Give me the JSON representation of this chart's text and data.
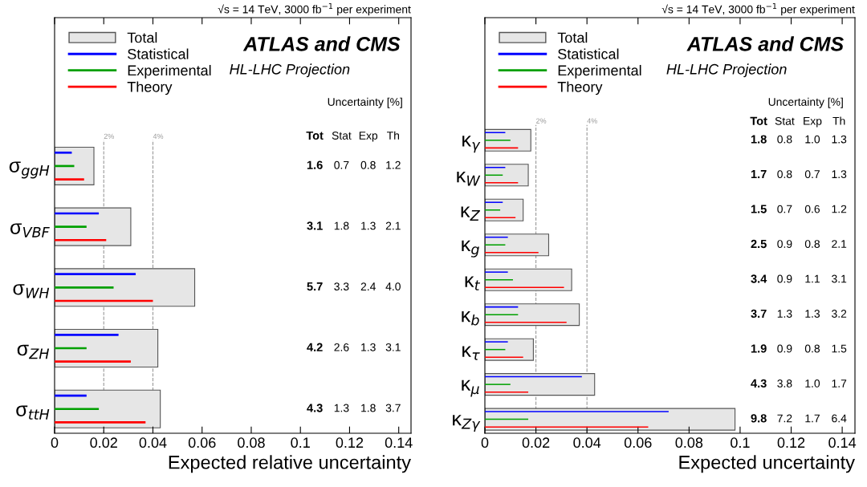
{
  "chart_data": [
    {
      "type": "bar",
      "orientation": "horizontal",
      "title": "ATLAS and CMS",
      "subtitle": "√s = 14 TeV, 3000 fb$^{−1}$ per experiment",
      "xlabel": "Expected relative uncertainty",
      "categories": [
        "σ$_{ggH}$",
        "σ$_{VBF}$",
        "σ$_{WH}$",
        "σ$_{ZH}$",
        "σ$_{ttH}$"
      ],
      "series": [
        {
          "name": "Total",
          "color": "#e6e6e6",
          "values": [
            0.016,
            0.031,
            0.057,
            0.042,
            0.043
          ]
        },
        {
          "name": "Statistical",
          "color": "#0000ff",
          "values": [
            0.007,
            0.018,
            0.033,
            0.026,
            0.013
          ]
        },
        {
          "name": "Experimental",
          "color": "#00a000",
          "values": [
            0.008,
            0.013,
            0.024,
            0.013,
            0.018
          ]
        },
        {
          "name": "Theory",
          "color": "#ff0000",
          "values": [
            0.012,
            0.021,
            0.04,
            0.031,
            0.037
          ]
        }
      ],
      "xlim": [
        0,
        0.145
      ],
      "xticks": [
        0,
        0.02,
        0.04,
        0.06,
        0.08,
        0.1,
        0.12,
        0.14
      ],
      "ref_lines": [
        {
          "axis": "x",
          "value": 0.02,
          "label": "2%",
          "color": "#999999",
          "line_style": "dashed"
        },
        {
          "axis": "x",
          "value": 0.04,
          "label": "4%",
          "color": "#999999",
          "line_style": "dashed"
        }
      ],
      "annotations": [
        "HL-LHC Projection",
        "Uncertainty [%]",
        "Tot",
        "Stat",
        "Exp",
        "Th",
        "1.6",
        "0.7",
        "0.8",
        "1.2",
        "3.1",
        "1.8",
        "1.3",
        "2.1",
        "5.7",
        "3.3",
        "2.4",
        "4.0",
        "4.2",
        "2.6",
        "1.3",
        "3.1",
        "4.3",
        "1.3",
        "1.8",
        "3.7"
      ],
      "legend": "top left",
      "grid": false
    },
    {
      "type": "bar",
      "orientation": "horizontal",
      "title": "ATLAS and CMS",
      "subtitle": "√s = 14 TeV, 3000 fb$^{−1}$ per experiment",
      "xlabel": "Expected uncertainty",
      "categories": [
        "κ$_{γ}$",
        "κ$_{W}$",
        "κ$_{Z}$",
        "κ$_{g}$",
        "κ$_{t}$",
        "κ$_{b}$",
        "κ$_{τ}$",
        "κ$_{μ}$",
        "κ$_{Zγ}$"
      ],
      "series": [
        {
          "name": "Total",
          "color": "#e6e6e6",
          "values": [
            0.018,
            0.017,
            0.015,
            0.025,
            0.034,
            0.037,
            0.019,
            0.043,
            0.098
          ]
        },
        {
          "name": "Statistical",
          "color": "#0000ff",
          "values": [
            0.008,
            0.008,
            0.007,
            0.009,
            0.009,
            0.013,
            0.009,
            0.038,
            0.072
          ]
        },
        {
          "name": "Experimental",
          "color": "#00a000",
          "values": [
            0.01,
            0.007,
            0.006,
            0.008,
            0.011,
            0.013,
            0.008,
            0.01,
            0.017
          ]
        },
        {
          "name": "Theory",
          "color": "#ff0000",
          "values": [
            0.013,
            0.013,
            0.012,
            0.021,
            0.031,
            0.032,
            0.015,
            0.017,
            0.064
          ]
        }
      ],
      "xlim": [
        0,
        0.145
      ],
      "xticks": [
        0,
        0.02,
        0.04,
        0.06,
        0.08,
        0.1,
        0.12,
        0.14
      ],
      "ref_lines": [
        {
          "axis": "x",
          "value": 0.02,
          "label": "2%",
          "color": "#999999",
          "line_style": "dashed"
        },
        {
          "axis": "x",
          "value": 0.04,
          "label": "4%",
          "color": "#999999",
          "line_style": "dashed"
        }
      ],
      "annotations": [
        "HL-LHC Projection",
        "Uncertainty [%]",
        "Tot",
        "Stat",
        "Exp",
        "Th",
        "1.8",
        "0.8",
        "1.0",
        "1.3",
        "1.7",
        "0.8",
        "0.7",
        "1.3",
        "1.5",
        "0.7",
        "0.6",
        "1.2",
        "2.5",
        "0.9",
        "0.8",
        "2.1",
        "3.4",
        "0.9",
        "1.1",
        "3.1",
        "3.7",
        "1.3",
        "1.3",
        "3.2",
        "1.9",
        "0.9",
        "0.8",
        "1.5",
        "4.3",
        "3.8",
        "1.0",
        "1.7",
        "9.8",
        "7.2",
        "1.7",
        "6.4"
      ],
      "legend": "top left",
      "grid": false
    }
  ]
}
